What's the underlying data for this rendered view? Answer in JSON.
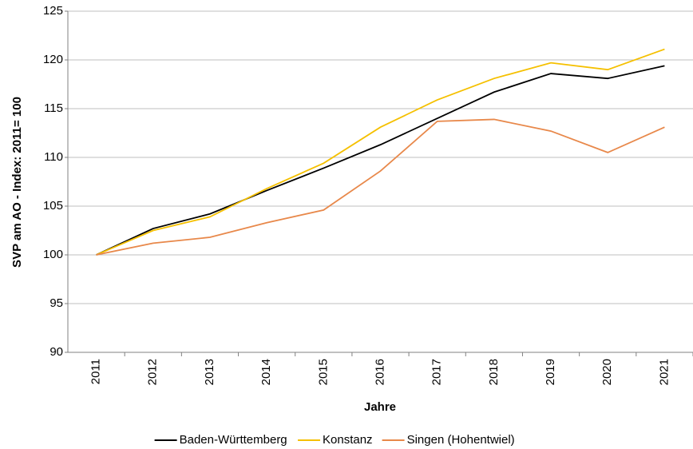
{
  "chart_data": {
    "type": "line",
    "categories": [
      "2011",
      "2012",
      "2013",
      "2014",
      "2015",
      "2016",
      "2017",
      "2018",
      "2019",
      "2020",
      "2021"
    ],
    "series": [
      {
        "name": "Baden-Württemberg",
        "color": "#000000",
        "values": [
          100,
          102.7,
          104.2,
          106.6,
          108.9,
          111.3,
          114.0,
          116.7,
          118.6,
          118.1,
          119.4
        ]
      },
      {
        "name": "Konstanz",
        "color": "#f5c000",
        "values": [
          100,
          102.5,
          103.9,
          106.8,
          109.4,
          113.1,
          115.9,
          118.1,
          119.7,
          119.0,
          121.1
        ]
      },
      {
        "name": "Singen (Hohentwiel)",
        "color": "#e8884a",
        "values": [
          100,
          101.2,
          101.8,
          103.3,
          104.6,
          108.6,
          113.7,
          113.9,
          112.7,
          110.5,
          113.1
        ]
      }
    ],
    "y_label": "SVP am AO - Index: 2011= 100",
    "x_label": "Jahre",
    "ylim": [
      90,
      125
    ],
    "yticks": [
      90,
      95,
      100,
      105,
      110,
      115,
      120,
      125
    ],
    "grid": true,
    "legend": "bottom"
  }
}
